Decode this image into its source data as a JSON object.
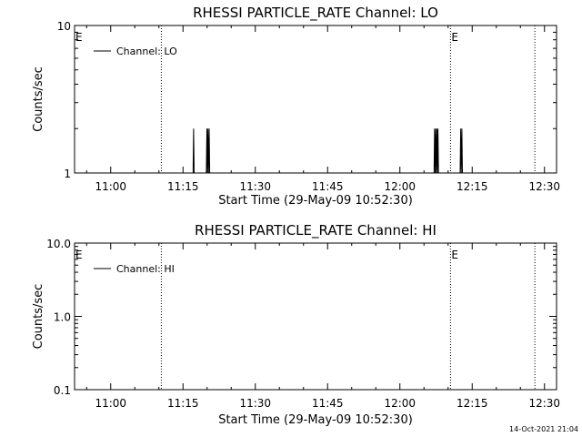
{
  "footer_timestamp": "14-Oct-2021 21:04",
  "chart_data": [
    {
      "type": "line",
      "title": "RHESSI PARTICLE_RATE Channel: LO",
      "xlabel": "Start Time (29-May-09 10:52:30)",
      "ylabel": "Counts/sec",
      "xlim": [
        "10:52:30",
        "12:32:30"
      ],
      "xticks": [
        "11:00",
        "11:15",
        "11:30",
        "11:45",
        "12:00",
        "12:15",
        "12:30"
      ],
      "y_scale": "log",
      "ylim": [
        1,
        10
      ],
      "yticks": [
        "1",
        "10"
      ],
      "legend": {
        "placement": "top-left",
        "entries": [
          "Channel: LO"
        ]
      },
      "markers": [
        {
          "time": "10:52:30",
          "label": "E"
        },
        {
          "time": "11:10:30",
          "label": ""
        },
        {
          "time": "12:10:30",
          "label": "E"
        },
        {
          "time": "12:28:00",
          "label": ""
        }
      ],
      "series": [
        {
          "name": "Channel: LO",
          "points": [
            [
              "11:17:05",
              1
            ],
            [
              "11:17:12",
              2
            ],
            [
              "11:17:19",
              1
            ],
            [
              "11:19:50",
              1
            ],
            [
              "11:19:57",
              2
            ],
            [
              "11:20:04",
              1
            ],
            [
              "11:20:11",
              2
            ],
            [
              "11:20:18",
              1
            ],
            [
              "11:20:25",
              2
            ],
            [
              "11:20:32",
              1
            ],
            [
              "12:07:05",
              1
            ],
            [
              "12:07:12",
              2
            ],
            [
              "12:07:19",
              1
            ],
            [
              "12:07:26",
              2
            ],
            [
              "12:07:33",
              1
            ],
            [
              "12:07:40",
              2
            ],
            [
              "12:07:47",
              1
            ],
            [
              "12:07:54",
              2
            ],
            [
              "12:08:01",
              1
            ],
            [
              "12:12:30",
              1
            ],
            [
              "12:12:37",
              2
            ],
            [
              "12:12:44",
              1
            ],
            [
              "12:12:51",
              2
            ],
            [
              "12:12:58",
              1
            ]
          ]
        }
      ]
    },
    {
      "type": "line",
      "title": "RHESSI PARTICLE_RATE Channel: HI",
      "xlabel": "Start Time (29-May-09 10:52:30)",
      "ylabel": "Counts/sec",
      "xlim": [
        "10:52:30",
        "12:32:30"
      ],
      "xticks": [
        "11:00",
        "11:15",
        "11:30",
        "11:45",
        "12:00",
        "12:15",
        "12:30"
      ],
      "y_scale": "log",
      "ylim": [
        0.1,
        10
      ],
      "yticks": [
        "0.1",
        "1.0",
        "10.0"
      ],
      "legend": {
        "placement": "top-left",
        "entries": [
          "Channel: HI"
        ]
      },
      "markers": [
        {
          "time": "10:52:30",
          "label": "E"
        },
        {
          "time": "11:10:30",
          "label": ""
        },
        {
          "time": "12:10:30",
          "label": "E"
        },
        {
          "time": "12:28:00",
          "label": ""
        }
      ],
      "series": [
        {
          "name": "Channel: HI",
          "points": []
        }
      ]
    }
  ]
}
